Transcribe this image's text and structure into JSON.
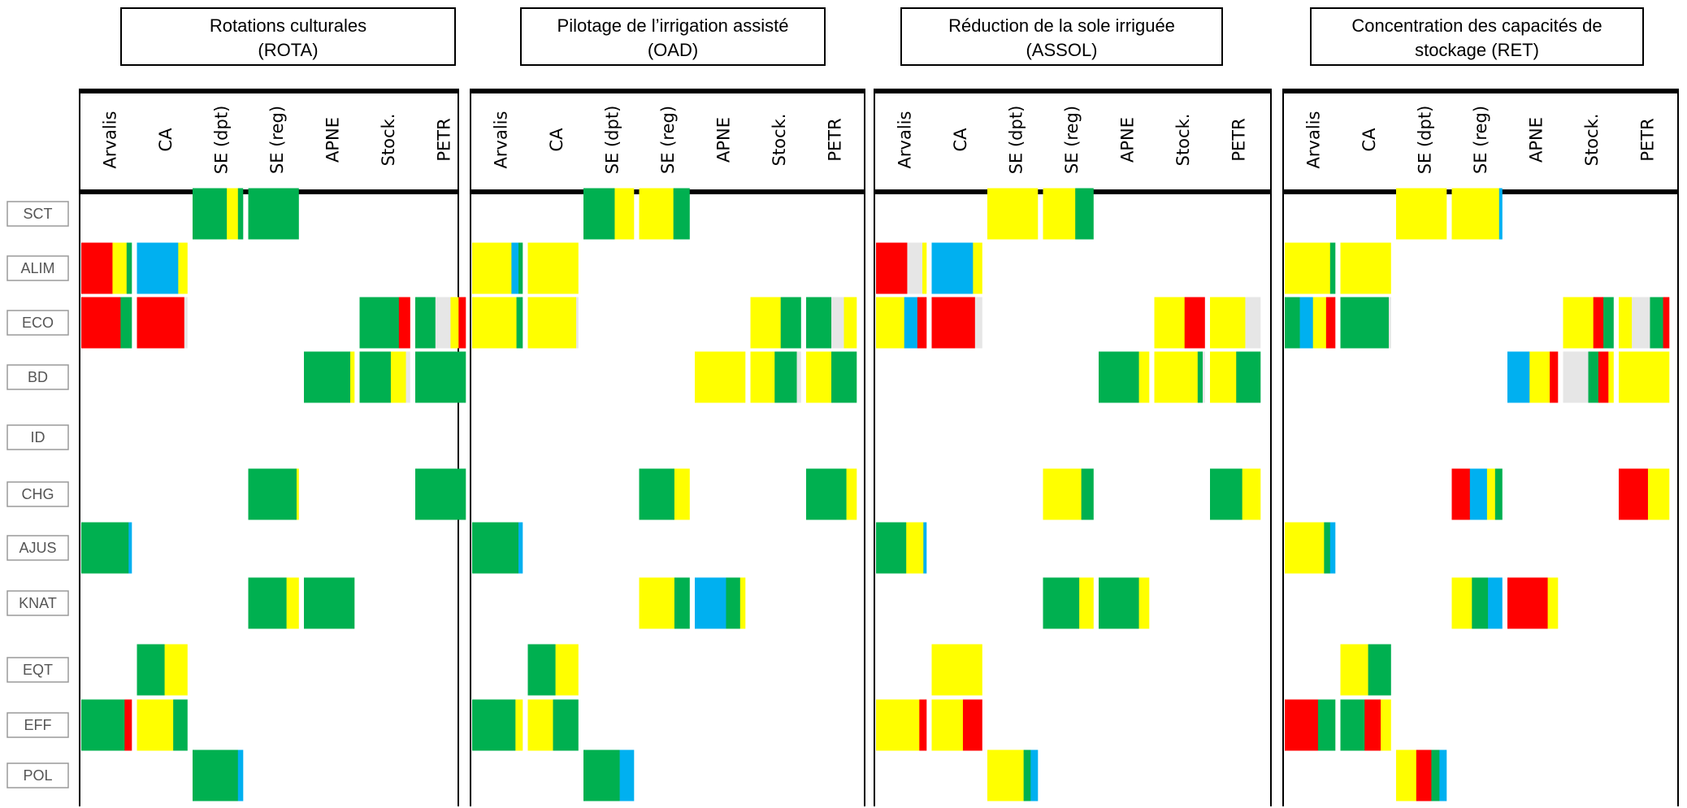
{
  "colors": {
    "G": "#00b050",
    "Y": "#ffff00",
    "R": "#ff0000",
    "B": "#00b0f0",
    "L": "#e6e6e6"
  },
  "panels": [
    {
      "title_line1": "Rotations culturales",
      "title_line2": "(ROTA)",
      "cells": {
        "SCT": {
          "SE (dpt)": [
            [
              "G",
              0.68
            ],
            [
              "Y",
              0.22
            ],
            [
              "G",
              0.1
            ]
          ],
          "SE (reg)": [
            [
              "G",
              1.0
            ]
          ]
        },
        "ALIM": {
          "Arvalis": [
            [
              "R",
              0.62
            ],
            [
              "Y",
              0.28
            ],
            [
              "G",
              0.1
            ]
          ],
          "CA": [
            [
              "B",
              0.82
            ],
            [
              "Y",
              0.18
            ]
          ]
        },
        "ECO": {
          "Arvalis": [
            [
              "R",
              0.78
            ],
            [
              "G",
              0.22
            ]
          ],
          "CA": [
            [
              "R",
              0.94
            ],
            [
              "L",
              0.06
            ]
          ],
          "Stock.": [
            [
              "G",
              0.78
            ],
            [
              "R",
              0.22
            ]
          ],
          "PETR": [
            [
              "G",
              0.4
            ],
            [
              "L",
              0.3
            ],
            [
              "Y",
              0.16
            ],
            [
              "R",
              0.14
            ]
          ]
        },
        "BD": {
          "APNE": [
            [
              "G",
              0.92
            ],
            [
              "Y",
              0.08
            ]
          ],
          "Stock.": [
            [
              "G",
              0.62
            ],
            [
              "Y",
              0.3
            ],
            [
              "L",
              0.08
            ]
          ],
          "PETR": [
            [
              "G",
              1.0
            ]
          ]
        },
        "ID": {},
        "CHG": {
          "SE (reg)": [
            [
              "G",
              0.96
            ],
            [
              "Y",
              0.04
            ]
          ],
          "PETR": [
            [
              "G",
              1.0
            ]
          ]
        },
        "AJUS": {
          "Arvalis": [
            [
              "G",
              0.94
            ],
            [
              "B",
              0.06
            ]
          ]
        },
        "KNAT": {
          "SE (reg)": [
            [
              "G",
              0.76
            ],
            [
              "Y",
              0.24
            ]
          ],
          "APNE": [
            [
              "G",
              1.0
            ]
          ]
        },
        "EQT": {
          "CA": [
            [
              "G",
              0.55
            ],
            [
              "Y",
              0.45
            ]
          ]
        },
        "EFF": {
          "Arvalis": [
            [
              "G",
              0.86
            ],
            [
              "R",
              0.14
            ]
          ],
          "CA": [
            [
              "Y",
              0.72
            ],
            [
              "G",
              0.28
            ]
          ]
        },
        "POL": {
          "SE (dpt)": [
            [
              "G",
              0.9
            ],
            [
              "B",
              0.1
            ]
          ]
        }
      }
    },
    {
      "title_line1": "Pilotage de l’irrigation assisté",
      "title_line2": "(OAD)",
      "cells": {
        "SCT": {
          "SE (dpt)": [
            [
              "G",
              0.62
            ],
            [
              "Y",
              0.38
            ]
          ],
          "SE (reg)": [
            [
              "Y",
              0.68
            ],
            [
              "G",
              0.32
            ]
          ]
        },
        "ALIM": {
          "Arvalis": [
            [
              "Y",
              0.78
            ],
            [
              "B",
              0.14
            ],
            [
              "G",
              0.08
            ]
          ],
          "CA": [
            [
              "Y",
              1.0
            ]
          ]
        },
        "ECO": {
          "Arvalis": [
            [
              "Y",
              0.88
            ],
            [
              "G",
              0.12
            ]
          ],
          "CA": [
            [
              "Y",
              0.96
            ],
            [
              "L",
              0.04
            ]
          ],
          "Stock.": [
            [
              "Y",
              0.6
            ],
            [
              "G",
              0.4
            ]
          ],
          "PETR": [
            [
              "G",
              0.5
            ],
            [
              "L",
              0.25
            ],
            [
              "Y",
              0.25
            ]
          ]
        },
        "BD": {
          "APNE": [
            [
              "Y",
              1.0
            ]
          ],
          "Stock.": [
            [
              "Y",
              0.48
            ],
            [
              "G",
              0.44
            ],
            [
              "L",
              0.08
            ]
          ],
          "PETR": [
            [
              "Y",
              0.5
            ],
            [
              "G",
              0.5
            ]
          ]
        },
        "ID": {},
        "CHG": {
          "SE (reg)": [
            [
              "G",
              0.7
            ],
            [
              "Y",
              0.3
            ]
          ],
          "PETR": [
            [
              "G",
              0.8
            ],
            [
              "Y",
              0.2
            ]
          ]
        },
        "AJUS": {
          "Arvalis": [
            [
              "G",
              0.92
            ],
            [
              "B",
              0.08
            ]
          ]
        },
        "KNAT": {
          "SE (reg)": [
            [
              "Y",
              0.7
            ],
            [
              "G",
              0.3
            ]
          ],
          "APNE": [
            [
              "B",
              0.62
            ],
            [
              "G",
              0.28
            ],
            [
              "Y",
              0.1
            ]
          ]
        },
        "EQT": {
          "CA": [
            [
              "G",
              0.55
            ],
            [
              "Y",
              0.45
            ]
          ]
        },
        "EFF": {
          "Arvalis": [
            [
              "G",
              0.86
            ],
            [
              "Y",
              0.14
            ]
          ],
          "CA": [
            [
              "Y",
              0.5
            ],
            [
              "G",
              0.5
            ]
          ]
        },
        "POL": {
          "SE (dpt)": [
            [
              "G",
              0.72
            ],
            [
              "B",
              0.28
            ]
          ]
        }
      }
    },
    {
      "title_line1": "Réduction de la sole irriguée",
      "title_line2": "(ASSOL)",
      "cells": {
        "SCT": {
          "SE (dpt)": [
            [
              "Y",
              1.0
            ]
          ],
          "SE (reg)": [
            [
              "Y",
              0.64
            ],
            [
              "G",
              0.36
            ]
          ]
        },
        "ALIM": {
          "Arvalis": [
            [
              "R",
              0.62
            ],
            [
              "L",
              0.3
            ],
            [
              "Y",
              0.08
            ]
          ],
          "CA": [
            [
              "B",
              0.82
            ],
            [
              "Y",
              0.18
            ]
          ]
        },
        "ECO": {
          "Arvalis": [
            [
              "Y",
              0.56
            ],
            [
              "B",
              0.26
            ],
            [
              "R",
              0.18
            ]
          ],
          "CA": [
            [
              "R",
              0.86
            ],
            [
              "L",
              0.14
            ]
          ],
          "Stock.": [
            [
              "Y",
              0.6
            ],
            [
              "R",
              0.4
            ]
          ],
          "PETR": [
            [
              "Y",
              0.7
            ],
            [
              "L",
              0.3
            ]
          ]
        },
        "BD": {
          "APNE": [
            [
              "G",
              0.8
            ],
            [
              "Y",
              0.2
            ]
          ],
          "Stock.": [
            [
              "Y",
              0.86
            ],
            [
              "G",
              0.1
            ],
            [
              "L",
              0.04
            ]
          ],
          "PETR": [
            [
              "Y",
              0.52
            ],
            [
              "G",
              0.48
            ]
          ]
        },
        "ID": {},
        "CHG": {
          "SE (reg)": [
            [
              "Y",
              0.76
            ],
            [
              "G",
              0.24
            ]
          ],
          "PETR": [
            [
              "G",
              0.64
            ],
            [
              "Y",
              0.36
            ]
          ]
        },
        "AJUS": {
          "Arvalis": [
            [
              "G",
              0.6
            ],
            [
              "Y",
              0.34
            ],
            [
              "B",
              0.06
            ]
          ]
        },
        "KNAT": {
          "SE (reg)": [
            [
              "G",
              0.72
            ],
            [
              "Y",
              0.28
            ]
          ],
          "APNE": [
            [
              "G",
              0.8
            ],
            [
              "Y",
              0.2
            ]
          ]
        },
        "EQT": {
          "CA": [
            [
              "Y",
              1.0
            ]
          ]
        },
        "EFF": {
          "Arvalis": [
            [
              "Y",
              0.86
            ],
            [
              "R",
              0.14
            ]
          ],
          "CA": [
            [
              "Y",
              0.62
            ],
            [
              "R",
              0.38
            ]
          ]
        },
        "POL": {
          "SE (dpt)": [
            [
              "Y",
              0.72
            ],
            [
              "G",
              0.14
            ],
            [
              "B",
              0.14
            ]
          ]
        }
      }
    },
    {
      "title_line1": "Concentration des capacités de",
      "title_line2": "stockage (RET)",
      "cells": {
        "SCT": {
          "SE (dpt)": [
            [
              "Y",
              1.0
            ]
          ],
          "SE (reg)": [
            [
              "Y",
              0.94
            ],
            [
              "B",
              0.06
            ]
          ]
        },
        "ALIM": {
          "Arvalis": [
            [
              "Y",
              0.9
            ],
            [
              "G",
              0.1
            ]
          ],
          "CA": [
            [
              "Y",
              1.0
            ]
          ]
        },
        "ECO": {
          "Arvalis": [
            [
              "G",
              0.3
            ],
            [
              "B",
              0.26
            ],
            [
              "Y",
              0.26
            ],
            [
              "R",
              0.18
            ]
          ],
          "CA": [
            [
              "G",
              0.96
            ],
            [
              "L",
              0.04
            ]
          ],
          "Stock.": [
            [
              "Y",
              0.6
            ],
            [
              "R",
              0.2
            ],
            [
              "G",
              0.2
            ]
          ],
          "PETR": [
            [
              "Y",
              0.26
            ],
            [
              "L",
              0.36
            ],
            [
              "G",
              0.26
            ],
            [
              "R",
              0.12
            ]
          ]
        },
        "BD": {
          "APNE": [
            [
              "B",
              0.44
            ],
            [
              "Y",
              0.4
            ],
            [
              "R",
              0.16
            ]
          ],
          "Stock.": [
            [
              "L",
              0.5
            ],
            [
              "G",
              0.2
            ],
            [
              "R",
              0.2
            ],
            [
              "Y",
              0.1
            ]
          ],
          "PETR": [
            [
              "Y",
              1.0
            ]
          ]
        },
        "ID": {},
        "CHG": {
          "SE (reg)": [
            [
              "R",
              0.36
            ],
            [
              "B",
              0.34
            ],
            [
              "Y",
              0.16
            ],
            [
              "G",
              0.14
            ]
          ],
          "PETR": [
            [
              "R",
              0.58
            ],
            [
              "Y",
              0.42
            ]
          ]
        },
        "AJUS": {
          "Arvalis": [
            [
              "Y",
              0.78
            ],
            [
              "G",
              0.12
            ],
            [
              "B",
              0.1
            ]
          ]
        },
        "KNAT": {
          "SE (reg)": [
            [
              "Y",
              0.4
            ],
            [
              "G",
              0.32
            ],
            [
              "B",
              0.28
            ]
          ],
          "APNE": [
            [
              "R",
              0.8
            ],
            [
              "Y",
              0.2
            ]
          ]
        },
        "EQT": {
          "CA": [
            [
              "Y",
              0.55
            ],
            [
              "G",
              0.45
            ]
          ]
        },
        "EFF": {
          "Arvalis": [
            [
              "R",
              0.66
            ],
            [
              "G",
              0.34
            ]
          ],
          "CA": [
            [
              "G",
              0.48
            ],
            [
              "R",
              0.32
            ],
            [
              "Y",
              0.2
            ]
          ]
        },
        "POL": {
          "SE (dpt)": [
            [
              "Y",
              0.4
            ],
            [
              "R",
              0.3
            ],
            [
              "G",
              0.16
            ],
            [
              "B",
              0.14
            ]
          ]
        }
      }
    }
  ],
  "columns": [
    "Arvalis",
    "CA",
    "SE (dpt)",
    "SE (reg)",
    "APNE",
    "Stock.",
    "PETR"
  ],
  "rows": [
    "SCT",
    "ALIM",
    "ECO",
    "BD",
    "ID",
    "CHG",
    "AJUS",
    "KNAT",
    "EQT",
    "EFF",
    "POL"
  ]
}
